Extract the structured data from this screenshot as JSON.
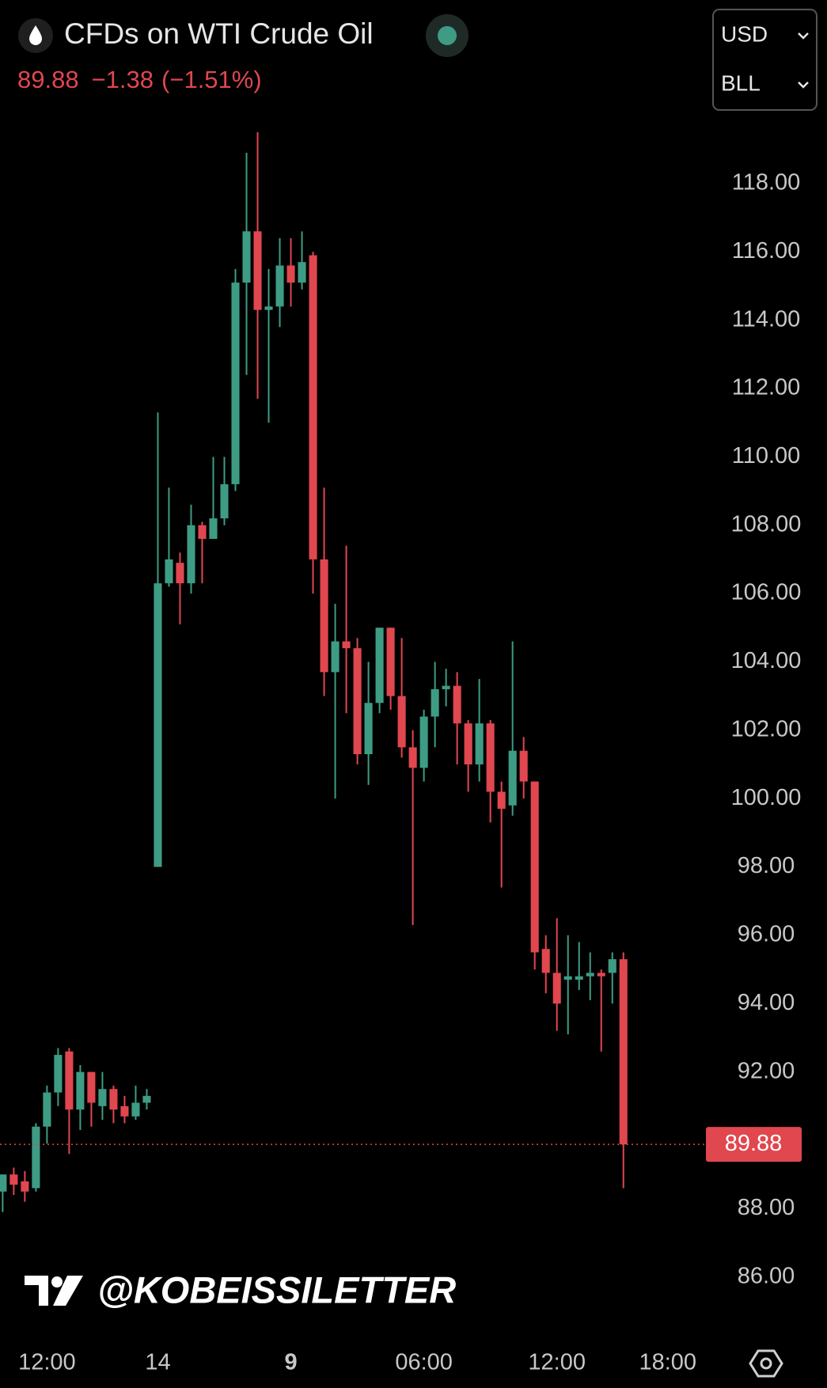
{
  "chart_data": {
    "type": "candlestick",
    "title": "CFDs on WTI Crude Oil",
    "change": "−1.38",
    "change_percent": "(−1.51%)",
    "currency": "USD",
    "unit": "BLL",
    "watermark": "@KOBEISSILETTER",
    "last_price": 89.88,
    "up_color": "#3e9c84",
    "down_color": "#e0474f",
    "open": [
      88.5,
      89.0,
      88.8,
      88.6,
      90.4,
      91.4,
      92.6,
      90.9,
      92.0,
      91.0,
      91.5,
      91.0,
      90.7,
      91.1,
      98.0,
      106.3,
      106.9,
      106.3,
      108.0,
      107.6,
      108.2,
      109.2,
      115.1,
      116.6,
      114.3,
      114.4,
      115.6,
      115.1,
      115.9,
      107.0,
      103.7,
      104.6,
      104.4,
      101.3,
      102.8,
      105.0,
      103.0,
      101.5,
      100.9,
      102.4,
      103.2,
      103.3,
      102.2,
      101.0,
      102.2,
      100.2,
      99.8,
      101.4,
      100.5,
      95.6,
      94.9,
      94.7,
      94.7,
      94.8,
      94.9,
      94.9,
      95.3
    ],
    "high": [
      89.0,
      89.2,
      89.1,
      90.5,
      91.6,
      92.7,
      92.7,
      92.2,
      92.0,
      92.0,
      91.6,
      91.3,
      91.6,
      91.5,
      111.3,
      109.1,
      107.2,
      108.6,
      108.1,
      110.0,
      110.0,
      115.5,
      118.9,
      119.5,
      115.5,
      116.4,
      116.4,
      116.6,
      116.0,
      109.1,
      105.7,
      107.4,
      104.7,
      104.0,
      105.0,
      105.0,
      104.7,
      102.0,
      102.6,
      104.0,
      103.8,
      103.7,
      102.3,
      103.5,
      102.3,
      100.5,
      104.6,
      101.8,
      100.5,
      96.0,
      96.5,
      96.0,
      95.8,
      95.5,
      95.0,
      95.5,
      95.5
    ],
    "low": [
      87.9,
      88.4,
      88.2,
      88.5,
      89.9,
      91.0,
      89.6,
      90.3,
      90.4,
      90.6,
      90.5,
      90.5,
      90.6,
      90.9,
      98.0,
      106.2,
      105.1,
      106.0,
      106.3,
      107.6,
      108.0,
      109.0,
      112.4,
      111.7,
      111.0,
      113.8,
      114.4,
      114.9,
      106.0,
      103.0,
      100.0,
      102.5,
      101.0,
      100.4,
      102.5,
      102.6,
      101.2,
      96.3,
      100.5,
      101.5,
      102.7,
      101.0,
      100.2,
      100.5,
      99.3,
      97.4,
      99.5,
      100.0,
      95.0,
      94.3,
      93.2,
      93.1,
      94.4,
      94.1,
      92.6,
      94.0,
      88.6
    ],
    "close": [
      89.0,
      88.7,
      88.5,
      90.4,
      91.4,
      92.5,
      90.9,
      92.0,
      91.1,
      91.5,
      90.9,
      90.7,
      91.1,
      91.3,
      106.3,
      107.0,
      106.3,
      108.0,
      107.6,
      108.2,
      109.2,
      115.1,
      116.6,
      114.3,
      114.4,
      115.6,
      115.1,
      115.7,
      107.0,
      103.7,
      104.6,
      104.4,
      101.3,
      102.8,
      105.0,
      103.0,
      101.5,
      100.9,
      102.4,
      103.2,
      103.3,
      102.2,
      101.0,
      102.2,
      100.2,
      99.7,
      101.4,
      100.5,
      95.5,
      94.9,
      94.0,
      94.8,
      94.8,
      94.9,
      94.8,
      95.3,
      89.88
    ],
    "xlim": [
      -0.24,
      63.3
    ],
    "xticks": [
      {
        "value": 4,
        "label": "12:00"
      },
      14,
      {
        "value": 26,
        "label": "9"
      },
      {
        "value": 38,
        "label": "06:00"
      },
      {
        "value": 50,
        "label": "12:00"
      },
      {
        "value": 60,
        "label": "18:00"
      }
    ],
    "ylim": [
      84.5,
      120
    ],
    "yticks": [
      {
        "value": 86,
        "label": "86.00"
      },
      {
        "value": 88,
        "label": "88.00"
      },
      {
        "value": 92,
        "label": "92.00"
      },
      {
        "value": 94,
        "label": "94.00"
      },
      {
        "value": 96,
        "label": "96.00"
      },
      {
        "value": 98,
        "label": "98.00"
      },
      {
        "value": 100,
        "label": "100.00"
      },
      {
        "value": 102,
        "label": "102.00"
      },
      {
        "value": 104,
        "label": "104.00"
      },
      {
        "value": 106,
        "label": "106.00"
      },
      {
        "value": 108,
        "label": "108.00"
      },
      {
        "value": 110,
        "label": "110.00"
      },
      {
        "value": 112,
        "label": "112.00"
      },
      {
        "value": 114,
        "label": "114.00"
      },
      {
        "value": 116,
        "label": "116.00"
      },
      {
        "value": 118,
        "label": "118.00"
      }
    ],
    "grid": false
  }
}
